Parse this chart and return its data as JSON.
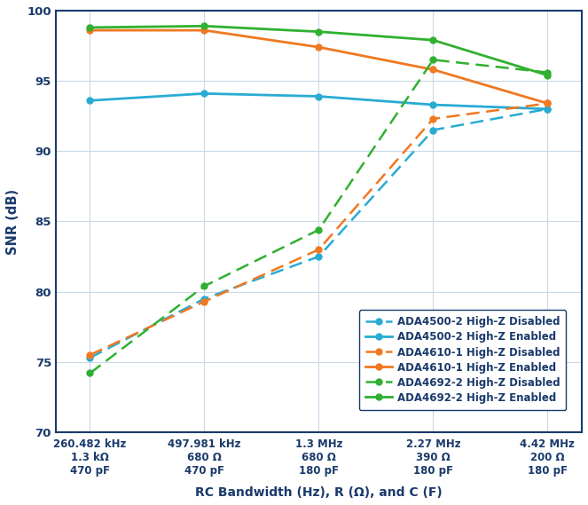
{
  "x_positions": [
    0,
    1,
    2,
    3,
    4
  ],
  "x_tick_labels": [
    "260.482 kHz\n1.3 kΩ\n470 pF",
    "497.981 kHz\n680 Ω\n470 pF",
    "1.3 MHz\n680 Ω\n180 pF",
    "2.27 MHz\n390 Ω\n180 pF",
    "4.42 MHz\n200 Ω\n180 pF"
  ],
  "xlabel": "RC Bandwidth (Hz), R (Ω), and C (F)",
  "ylabel": "SNR (dB)",
  "ylim": [
    70,
    100
  ],
  "yticks": [
    70,
    75,
    80,
    85,
    90,
    95,
    100
  ],
  "series": [
    {
      "label": "ADA4500-2 High-Z Disabled",
      "color": "#29ABD4",
      "linestyle": "dashed",
      "data": [
        75.3,
        79.5,
        82.5,
        91.5,
        93.0
      ]
    },
    {
      "label": "ADA4500-2 High-Z Enabled",
      "color": "#29ABD4",
      "linestyle": "solid",
      "data": [
        93.6,
        94.1,
        93.9,
        93.3,
        93.0
      ]
    },
    {
      "label": "ADA4610-1 High-Z Disabled",
      "color": "#F07820",
      "linestyle": "dashed",
      "data": [
        75.5,
        79.3,
        83.0,
        92.3,
        93.4
      ]
    },
    {
      "label": "ADA4610-1 High-Z Enabled",
      "color": "#F07820",
      "linestyle": "solid",
      "data": [
        98.6,
        98.6,
        97.4,
        95.8,
        93.4
      ]
    },
    {
      "label": "ADA4692-2 High-Z Disabled",
      "color": "#30B030",
      "linestyle": "dashed",
      "data": [
        74.2,
        80.4,
        84.4,
        96.5,
        95.6
      ]
    },
    {
      "label": "ADA4692-2 High-Z Enabled",
      "color": "#30B030",
      "linestyle": "solid",
      "data": [
        98.8,
        98.9,
        98.5,
        97.9,
        95.4
      ]
    }
  ],
  "background_color": "#ffffff",
  "plot_facecolor": "#ffffff",
  "spine_color": "#1A3A6B",
  "grid_color": "#C8D8E8",
  "tick_label_color": "#1A3A6B",
  "axis_label_color": "#1A3A6B",
  "legend_edge_color": "#1A3A6B"
}
